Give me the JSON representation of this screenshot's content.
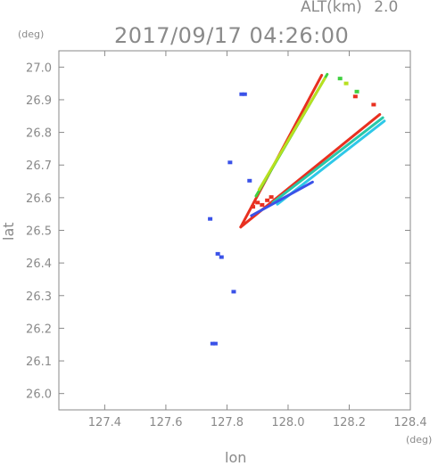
{
  "header": {
    "altitude_label": "ALT(km)",
    "altitude_value": "2.0",
    "timestamp": "2017/09/17 04:26:00",
    "y_unit": "(deg)",
    "x_unit": "(deg)"
  },
  "chart_data": {
    "type": "scatter",
    "title": "2017/09/17 04:26:00",
    "xlabel": "lon",
    "ylabel": "lat",
    "xlim": [
      127.25,
      128.4
    ],
    "ylim": [
      25.95,
      27.05
    ],
    "x_ticks": [
      "127.4",
      "127.6",
      "127.8",
      "128.0",
      "128.2",
      "128.4"
    ],
    "y_ticks": [
      "26.0",
      "26.1",
      "26.2",
      "26.3",
      "26.4",
      "26.5",
      "26.6",
      "26.7",
      "26.8",
      "26.9",
      "27.0"
    ],
    "grid": false,
    "colors": {
      "blue": "#3a52e8",
      "cyan": "#2ec8e8",
      "teal": "#28c8a8",
      "green": "#40d040",
      "yellow_green": "#b8e020",
      "red": "#e83020",
      "axis": "#8a8a8a"
    },
    "points": [
      {
        "x": 127.848,
        "y": 26.917,
        "c": "blue"
      },
      {
        "x": 127.858,
        "y": 26.917,
        "c": "blue"
      },
      {
        "x": 127.81,
        "y": 26.708,
        "c": "blue"
      },
      {
        "x": 127.874,
        "y": 26.652,
        "c": "blue"
      },
      {
        "x": 127.745,
        "y": 26.535,
        "c": "blue"
      },
      {
        "x": 127.77,
        "y": 26.428,
        "c": "blue"
      },
      {
        "x": 127.782,
        "y": 26.418,
        "c": "blue"
      },
      {
        "x": 127.822,
        "y": 26.312,
        "c": "blue"
      },
      {
        "x": 127.753,
        "y": 26.153,
        "c": "blue"
      },
      {
        "x": 127.762,
        "y": 26.153,
        "c": "blue"
      },
      {
        "x": 127.9,
        "y": 26.585,
        "c": "red"
      },
      {
        "x": 127.915,
        "y": 26.578,
        "c": "red"
      },
      {
        "x": 127.932,
        "y": 26.592,
        "c": "red"
      },
      {
        "x": 127.945,
        "y": 26.602,
        "c": "red"
      },
      {
        "x": 127.885,
        "y": 26.572,
        "c": "red"
      },
      {
        "x": 128.17,
        "y": 26.965,
        "c": "green"
      },
      {
        "x": 128.19,
        "y": 26.95,
        "c": "yellow_green"
      },
      {
        "x": 128.225,
        "y": 26.925,
        "c": "green"
      },
      {
        "x": 128.28,
        "y": 26.885,
        "c": "red"
      },
      {
        "x": 128.22,
        "y": 26.91,
        "c": "red"
      }
    ],
    "sectors": [
      {
        "apex": [
          127.845,
          26.51
        ],
        "bands": [
          {
            "from": [
              127.845,
              26.51
            ],
            "to": [
              128.11,
              26.975
            ],
            "c": "red"
          },
          {
            "from": [
              127.895,
              26.605
            ],
            "to": [
              128.128,
              26.978
            ],
            "c": "green"
          },
          {
            "from": [
              127.905,
              26.625
            ],
            "to": [
              128.12,
              26.965
            ],
            "c": "yellow_green"
          }
        ]
      },
      {
        "apex": [
          127.845,
          26.51
        ],
        "bands": [
          {
            "from": [
              127.845,
              26.51
            ],
            "to": [
              128.3,
              26.855
            ],
            "c": "red"
          },
          {
            "from": [
              127.95,
              26.585
            ],
            "to": [
              128.31,
              26.845
            ],
            "c": "teal"
          },
          {
            "from": [
              127.965,
              26.58
            ],
            "to": [
              128.315,
              26.835
            ],
            "c": "cyan"
          },
          {
            "from": [
              127.88,
              26.545
            ],
            "to": [
              128.08,
              26.648
            ],
            "c": "blue"
          }
        ]
      }
    ]
  }
}
